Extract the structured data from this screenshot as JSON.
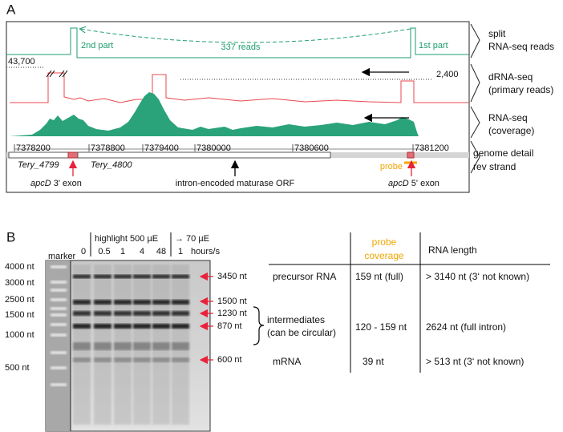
{
  "panel_a": {
    "label": "A",
    "split_reads": {
      "second_part": "2nd part",
      "count": "337 reads",
      "first_part": "1st part"
    },
    "drna_scale": {
      "max": "43,700",
      "ref": "2,400"
    },
    "tracks": [
      {
        "lines": [
          "split",
          "RNA-seq reads"
        ]
      },
      {
        "lines": [
          "dRNA-seq",
          "(primary reads)"
        ]
      },
      {
        "lines": [
          "RNA-seq",
          "(coverage)"
        ]
      },
      {
        "lines": [
          "genome detail",
          "rev strand"
        ]
      }
    ],
    "genome_ticks": [
      "7378200",
      "7378800",
      "7379400",
      "7380000",
      "7380600",
      "7381200"
    ],
    "genes": [
      "Tery_4799",
      "Tery_4800"
    ],
    "probe": "probe",
    "annotations": [
      {
        "gene": "apcD",
        "text": "3' exon"
      },
      {
        "text": "intron-encoded maturase ORF"
      },
      {
        "gene": "apcD",
        "text": "5' exon"
      }
    ]
  },
  "panel_b": {
    "label": "B",
    "marker": "marker",
    "condition_1": "highlight 500 µE",
    "condition_2": "→ 70 µE",
    "time_unit": "hours/s",
    "lanes": [
      "0",
      "0.5",
      "1",
      "4",
      "48",
      "1"
    ],
    "size_markers": [
      "4000 nt",
      "3000 nt",
      "2500 nt",
      "1500 nt",
      "1000 nt",
      "500 nt"
    ],
    "bands": [
      "3450 nt",
      "1500 nt",
      "1230 nt",
      "870 nt",
      "600 nt"
    ],
    "table": {
      "columns": [
        {
          "lines": [
            "probe",
            "coverage"
          ]
        },
        {
          "lines": [
            "RNA length"
          ]
        }
      ],
      "rows": [
        {
          "name": [
            "precursor RNA"
          ],
          "coverage": "159 nt (full)",
          "length": "> 3140 nt (3‘ not known)"
        },
        {
          "name": [
            "intermediates",
            "(can be circular)"
          ],
          "coverage": "120 - 159 nt",
          "length": "2624 nt (full intron)"
        },
        {
          "name": [
            "mRNA"
          ],
          "coverage": "39 nt",
          "length": "> 513 nt (3‘ not known)"
        }
      ]
    }
  }
}
